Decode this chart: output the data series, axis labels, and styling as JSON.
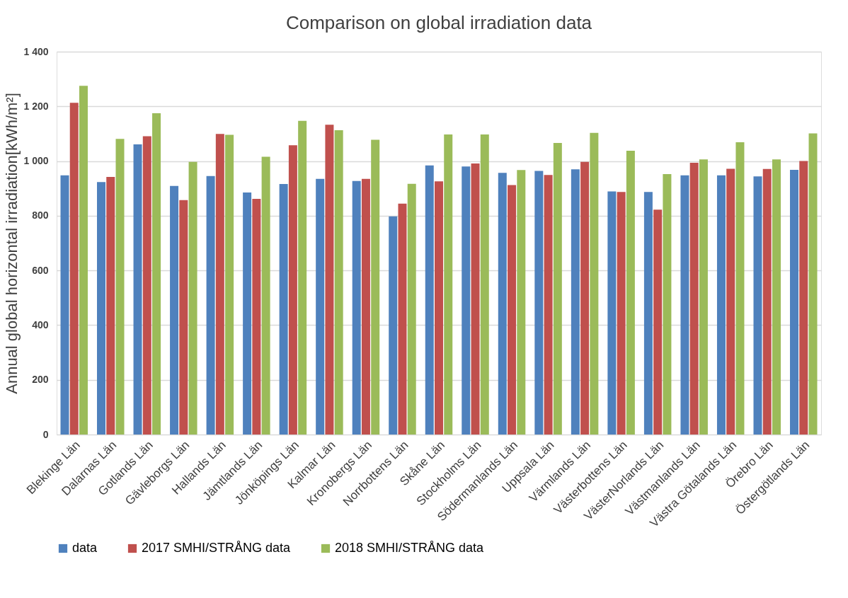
{
  "chart_data": {
    "type": "bar",
    "title": "Comparison on global irradiation data",
    "ylabel": "Annual global horizontal irradiation[kWh/m²]",
    "categories": [
      "Blekinge Län",
      "Dalarnas Län",
      "Gotlands Län",
      "Gävleborgs Län",
      "Hallands Län",
      "Jämtlands Län",
      "Jönköpings Län",
      "Kalmar Län",
      "Kronobergs Län",
      "Norrbottens Län",
      "Skåne Län",
      "Stockholms Län",
      "Södermanlands Län",
      "Uppsala Län",
      "Värmlands Län",
      "Västerbottens Län",
      "VästerNorlands Län",
      "Västmanlands Län",
      "Västra Götalands Län",
      "Örebro Län",
      "Östergötlands Län"
    ],
    "series": [
      {
        "name": "data",
        "color": "#4f81bd",
        "values": [
          948,
          923,
          1061,
          909,
          945,
          885,
          916,
          935,
          927,
          798,
          984,
          980,
          957,
          964,
          970,
          889,
          887,
          948,
          948,
          944,
          968
        ]
      },
      {
        "name": "2017 SMHI/STRÅNG data",
        "color": "#c0504d",
        "values": [
          1213,
          942,
          1091,
          857,
          1099,
          862,
          1058,
          1133,
          935,
          844,
          926,
          991,
          912,
          949,
          997,
          887,
          822,
          994,
          972,
          971,
          1000
        ]
      },
      {
        "name": "2018 SMHI/STRÅNG data",
        "color": "#9bbb59",
        "values": [
          1275,
          1081,
          1175,
          997,
          1096,
          1016,
          1147,
          1113,
          1078,
          917,
          1097,
          1097,
          967,
          1066,
          1103,
          1038,
          952,
          1006,
          1069,
          1006,
          1101
        ]
      }
    ],
    "ylim": [
      0,
      1400
    ],
    "yticks": [
      0,
      200,
      400,
      600,
      800,
      {
        "value": 1000,
        "label": "1 000"
      },
      {
        "value": 1200,
        "label": "1 200"
      },
      {
        "value": 1400,
        "label": "1 400"
      }
    ],
    "grid": "y",
    "legend": "bottom"
  }
}
